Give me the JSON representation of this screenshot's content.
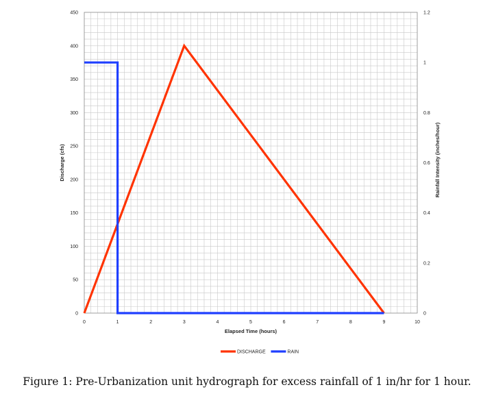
{
  "caption": "Figure 1: Pre-Urbanization unit hydrograph for excess rainfall of 1 in/hr for 1 hour.",
  "chart_data": {
    "type": "line",
    "title": "",
    "xlabel": "Elapsed Time (hours)",
    "ylabel": "Discharge (cfs)",
    "y2label": "Rainfall Intensity (inches/hour)",
    "xlim": [
      0,
      10
    ],
    "ylim": [
      0,
      450
    ],
    "y2lim": [
      0,
      1.2
    ],
    "x_ticks": [
      0,
      1,
      2,
      3,
      4,
      5,
      6,
      7,
      8,
      9,
      10
    ],
    "y_ticks": [
      0,
      50,
      100,
      150,
      200,
      250,
      300,
      350,
      400,
      450
    ],
    "y2_ticks": [
      0,
      0.2,
      0.4,
      0.6,
      0.8,
      1,
      1.2
    ],
    "grid": true,
    "legend_position": "bottom",
    "series": [
      {
        "name": "DISCHARGE",
        "axis": "left",
        "color": "#ff3300",
        "x": [
          0,
          3,
          9
        ],
        "y": [
          0,
          400,
          0
        ]
      },
      {
        "name": "RAIN",
        "axis": "right",
        "color": "#1f3fff",
        "x": [
          0,
          1,
          1,
          9
        ],
        "y": [
          1,
          1,
          0,
          0
        ]
      }
    ]
  }
}
